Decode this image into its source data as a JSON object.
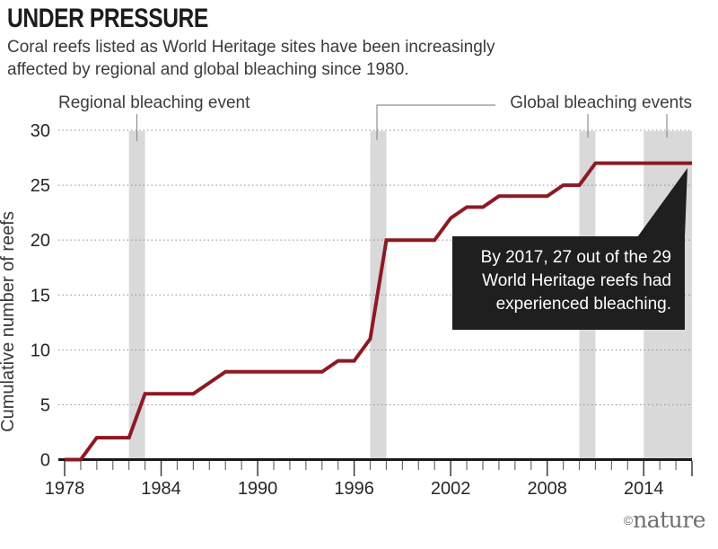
{
  "header": {
    "title": "UNDER PRESSURE",
    "subtitle": "Coral reefs listed as World Heritage sites have been increasingly\naffected by regional and global bleaching since 1980."
  },
  "annotations": {
    "regional_label": "Regional bleaching event",
    "global_label": "Global bleaching events",
    "callout_text": "By 2017, 27 out of the 29\nWorld Heritage reefs had\nexperienced bleaching."
  },
  "footer": {
    "copyright_symbol": "©",
    "brand": "nature"
  },
  "colors": {
    "line": "#8c1a23",
    "event_band": "#d9d9d9",
    "grid": "#8f8f8f",
    "axis": "#1a1a1a",
    "tick_minor": "#6b6b6b",
    "tick_major": "#3c3c3c",
    "leader": "#8f8f8f",
    "callout_bg": "#1f1f1f",
    "callout_text": "#ffffff",
    "axis_text": "#262626",
    "brand_text": "#6f6f6f"
  },
  "chart_data": {
    "type": "line",
    "title": "UNDER PRESSURE",
    "xlabel": "",
    "ylabel": "Cumulative number of reefs",
    "xlim": [
      1978,
      2017
    ],
    "ylim": [
      0,
      30
    ],
    "grid": "dotted horizontal gridlines at y ticks",
    "legend_position": "none",
    "x": [
      1978,
      1979,
      1980,
      1981,
      1982,
      1983,
      1984,
      1985,
      1986,
      1987,
      1988,
      1989,
      1990,
      1991,
      1992,
      1993,
      1994,
      1995,
      1996,
      1997,
      1998,
      1999,
      2000,
      2001,
      2002,
      2003,
      2004,
      2005,
      2006,
      2007,
      2008,
      2009,
      2010,
      2011,
      2012,
      2013,
      2014,
      2015,
      2016,
      2017
    ],
    "series": [
      {
        "name": "Cumulative number of reefs",
        "values": [
          0,
          0,
          2,
          2,
          2,
          6,
          6,
          6,
          6,
          7,
          8,
          8,
          8,
          8,
          8,
          8,
          8,
          9,
          9,
          11,
          20,
          20,
          20,
          20,
          22,
          23,
          23,
          24,
          24,
          24,
          24,
          25,
          25,
          27,
          27,
          27,
          27,
          27,
          27,
          27
        ]
      }
    ],
    "x_tick_labels": [
      1978,
      1984,
      1990,
      1996,
      2002,
      2008,
      2014
    ],
    "y_ticks": [
      0,
      5,
      10,
      15,
      20,
      25,
      30
    ],
    "event_bands": [
      {
        "label": "Regional bleaching event",
        "from": 1982,
        "to": 1983
      },
      {
        "label": "Global bleaching events",
        "from": 1997,
        "to": 1998
      },
      {
        "label": "Global bleaching events",
        "from": 2010,
        "to": 2011
      },
      {
        "label": "Global bleaching events",
        "from": 2014,
        "to": 2017
      }
    ]
  }
}
